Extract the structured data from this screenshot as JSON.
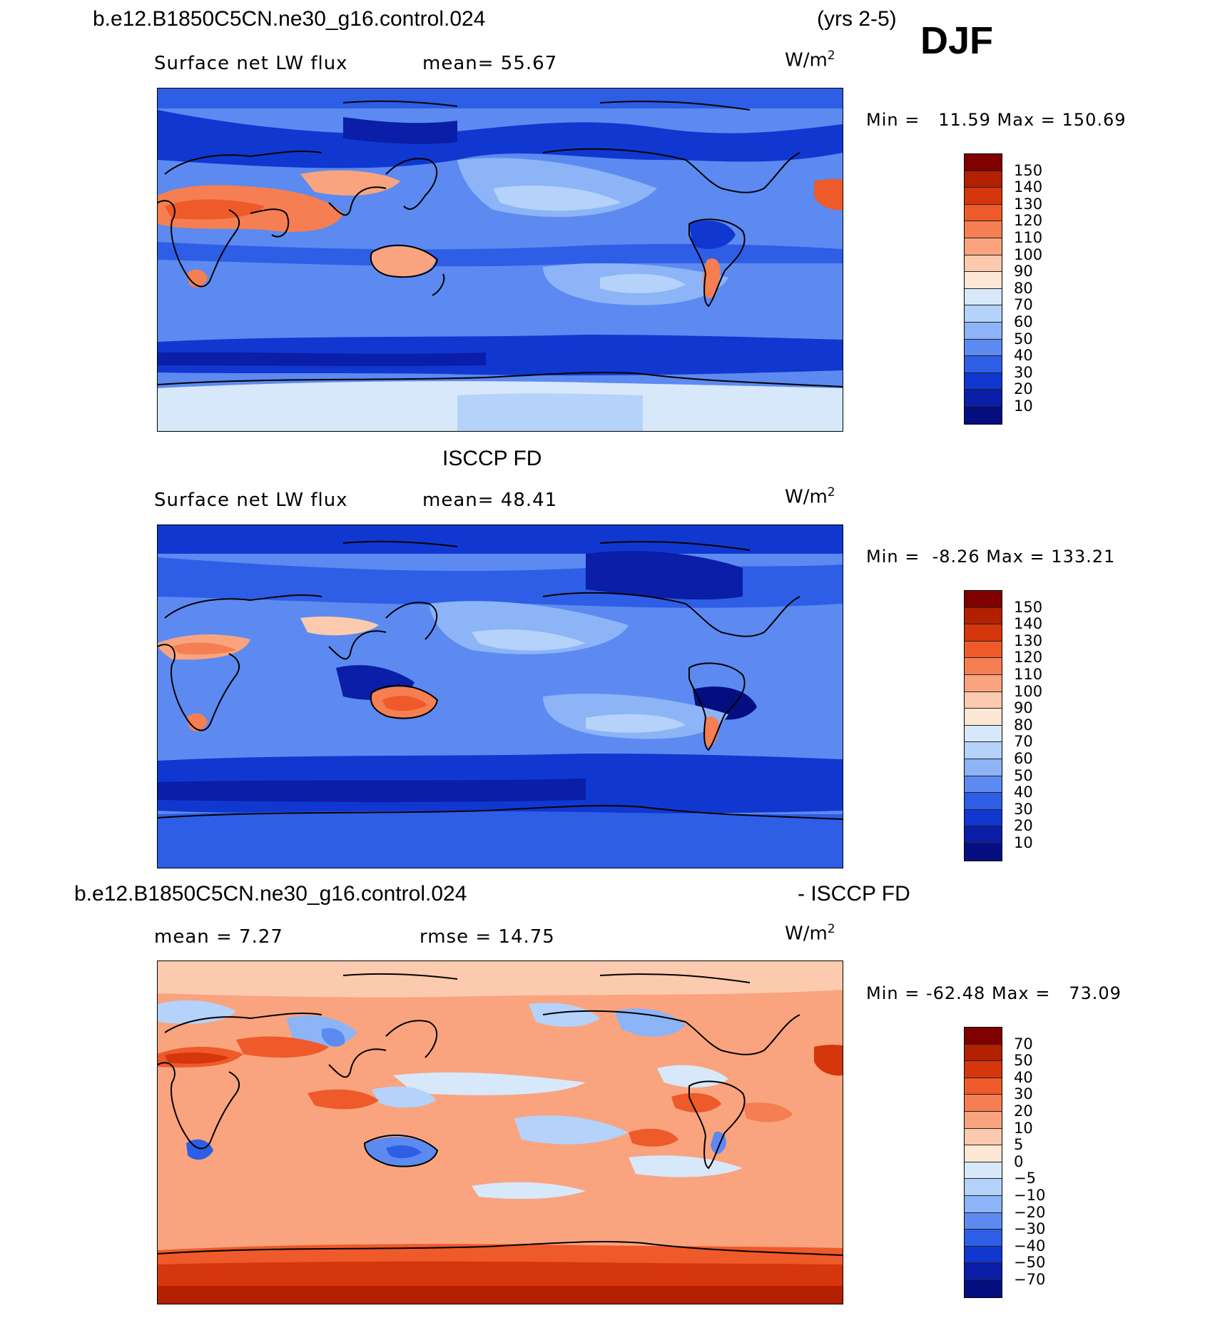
{
  "header": {
    "case_name": "b.e12.B1850C5CN.ne30_g16.control.024",
    "years": "(yrs 2-5)",
    "season": "DJF"
  },
  "panels": [
    {
      "title": "",
      "left_label": "Surface net LW flux",
      "mid_label": "mean=  55.67",
      "unit": "W/m",
      "unit_sup": "2",
      "stats": "Min =   11.59 Max = 150.69",
      "colorbar": {
        "labels": [
          "150",
          "140",
          "130",
          "120",
          "110",
          "100",
          "90",
          "80",
          "70",
          "60",
          "50",
          "40",
          "30",
          "20",
          "10"
        ],
        "colors": [
          "#800000",
          "#b22000",
          "#d6360c",
          "#ee5a2a",
          "#f57e52",
          "#f9a47e",
          "#fccaae",
          "#fde7d5",
          "#d8e8fb",
          "#b4d2fa",
          "#8cb4f6",
          "#5c8af0",
          "#2e5ee6",
          "#1038d0",
          "#0a1ea8",
          "#050e80"
        ]
      },
      "map_field": "model"
    },
    {
      "title": "ISCCP FD",
      "left_label": "Surface net LW flux",
      "mid_label": "mean=  48.41",
      "unit": "W/m",
      "unit_sup": "2",
      "stats": "Min =  -8.26 Max = 133.21",
      "colorbar": {
        "labels": [
          "150",
          "140",
          "130",
          "120",
          "110",
          "100",
          "90",
          "80",
          "70",
          "60",
          "50",
          "40",
          "30",
          "20",
          "10"
        ],
        "colors": [
          "#800000",
          "#b22000",
          "#d6360c",
          "#ee5a2a",
          "#f57e52",
          "#f9a47e",
          "#fccaae",
          "#fde7d5",
          "#d8e8fb",
          "#b4d2fa",
          "#8cb4f6",
          "#5c8af0",
          "#2e5ee6",
          "#1038d0",
          "#0a1ea8",
          "#050e80"
        ]
      },
      "map_field": "obs"
    },
    {
      "title_left": "b.e12.B1850C5CN.ne30_g16.control.024",
      "title_right": "- ISCCP FD",
      "left_label": "mean =   7.27",
      "mid_label": "rmse =   14.75",
      "unit": "W/m",
      "unit_sup": "2",
      "stats": "Min = -62.48 Max =   73.09",
      "colorbar": {
        "labels": [
          "70",
          "50",
          "40",
          "30",
          "20",
          "10",
          "5",
          "0",
          "-5",
          "-10",
          "-20",
          "-30",
          "-40",
          "-50",
          "-70"
        ],
        "colors": [
          "#800000",
          "#b22000",
          "#d6360c",
          "#ee5a2a",
          "#f57e52",
          "#f9a47e",
          "#fccaae",
          "#fde7d5",
          "#d8e8fb",
          "#b4d2fa",
          "#8cb4f6",
          "#5c8af0",
          "#2e5ee6",
          "#1038d0",
          "#0a1ea8",
          "#050e80"
        ]
      },
      "map_field": "difference"
    }
  ]
}
